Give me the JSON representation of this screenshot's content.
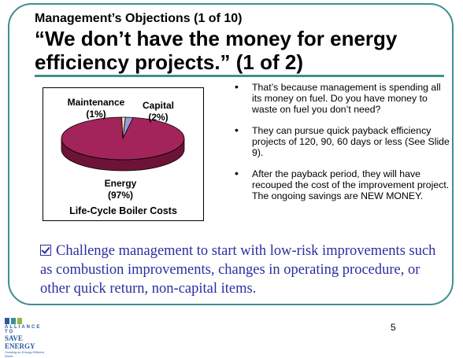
{
  "header": {
    "kicker": "Management’s Objections (1 of 10)",
    "headline": "“We don’t have the money for energy efficiency projects.” (1 of 2)"
  },
  "chart_data": {
    "type": "pie",
    "title": "Life-Cycle Boiler Costs",
    "categories": [
      "Maintenance",
      "Capital",
      "Energy"
    ],
    "values": [
      1,
      2,
      97
    ],
    "labels": [
      "Maintenance\n(1%)",
      "Capital\n(2%)",
      "Energy\n(97%)"
    ],
    "colors": [
      "#e8e0a8",
      "#9a9ad8",
      "#a3245a"
    ]
  },
  "chart_labels": {
    "maintenance_name": "Maintenance",
    "maintenance_pct": "(1%)",
    "capital_name": "Capital",
    "capital_pct": "(2%)",
    "energy_name": "Energy",
    "energy_pct": "(97%)"
  },
  "bullets": [
    "That’s because management is spending all its money on fuel.  Do you have money to waste on fuel you don’t need?",
    "They can pursue quick payback efficiency projects of 120, 90, 60 days or less (See Slide 9).",
    "After the payback period, they will have recouped the cost of the improvement project.  The ongoing savings are NEW MONEY."
  ],
  "callout": "Challenge management to start with low-risk improvements such as combustion improvements, changes in operating procedure, or other quick return, non-capital items.",
  "logo": {
    "line1": "ALLIANCE TO",
    "line2": "SAVE ENERGY",
    "line3": "Creating an Energy-Efficient World"
  },
  "page_number": "5",
  "colors": {
    "frame": "#3f8f92",
    "callout": "#2a2fa0"
  }
}
